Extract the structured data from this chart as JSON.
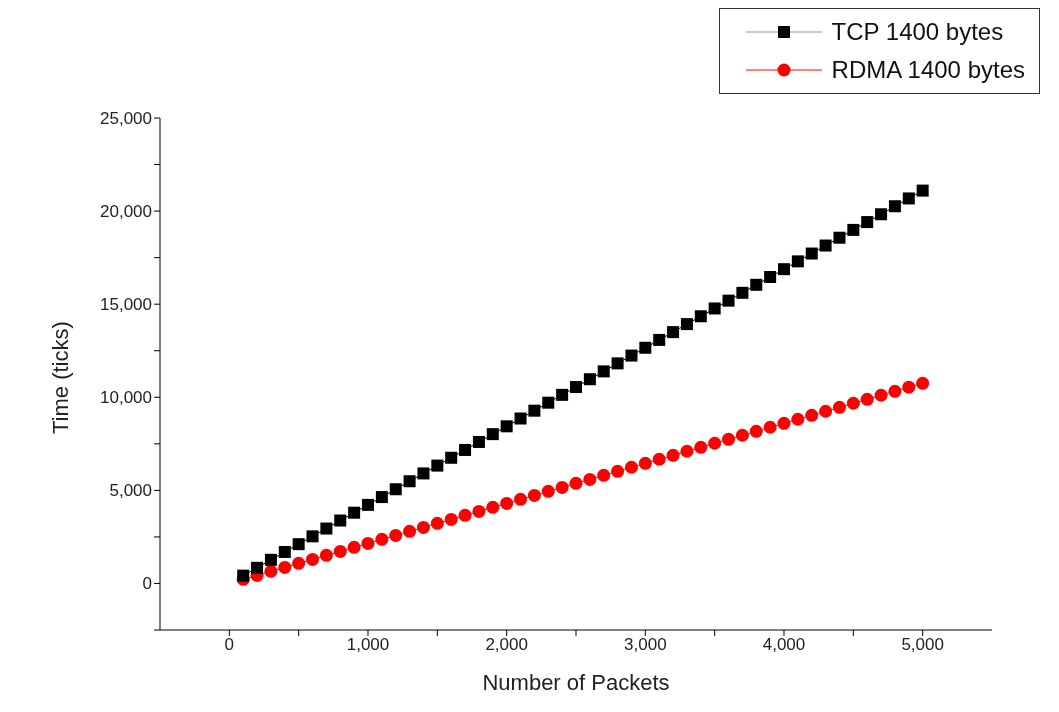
{
  "chart_data": {
    "type": "line",
    "xlabel": "Number of Packets",
    "ylabel": "Time (ticks)",
    "x": [
      100,
      200,
      300,
      400,
      500,
      600,
      700,
      800,
      900,
      1000,
      1100,
      1200,
      1300,
      1400,
      1500,
      1600,
      1700,
      1800,
      1900,
      2000,
      2100,
      2200,
      2300,
      2400,
      2500,
      2600,
      2700,
      2800,
      2900,
      3000,
      3100,
      3200,
      3300,
      3400,
      3500,
      3600,
      3700,
      3800,
      3900,
      4000,
      4100,
      4200,
      4300,
      4400,
      4500,
      4600,
      4700,
      4800,
      4900,
      5000
    ],
    "series": [
      {
        "name": "TCP 1400 bytes",
        "color": "#000000",
        "marker": "square",
        "values": [
          420,
          840,
          1270,
          1690,
          2110,
          2530,
          2950,
          3380,
          3800,
          4220,
          4640,
          5060,
          5490,
          5910,
          6330,
          6750,
          7170,
          7600,
          8020,
          8440,
          8860,
          9280,
          9710,
          10130,
          10550,
          10970,
          11390,
          11820,
          12240,
          12660,
          13080,
          13500,
          13930,
          14350,
          14770,
          15190,
          15610,
          16040,
          16460,
          16880,
          17300,
          17720,
          18150,
          18570,
          18990,
          19410,
          19830,
          20260,
          20680,
          21100
        ]
      },
      {
        "name": "RDMA 1400 bytes",
        "color": "#ff0000",
        "marker": "circle",
        "values": [
          220,
          430,
          650,
          860,
          1080,
          1290,
          1510,
          1720,
          1940,
          2150,
          2370,
          2580,
          2800,
          3010,
          3230,
          3440,
          3660,
          3870,
          4090,
          4300,
          4520,
          4730,
          4950,
          5160,
          5380,
          5590,
          5810,
          6020,
          6240,
          6450,
          6670,
          6880,
          7100,
          7310,
          7530,
          7740,
          7960,
          8170,
          8390,
          8600,
          8820,
          9030,
          9250,
          9460,
          9680,
          9890,
          10110,
          10320,
          10540,
          10750
        ]
      }
    ],
    "xlim": [
      -500,
      5500
    ],
    "xticks": [
      0,
      {
        "value": 500,
        "label": null
      },
      {
        "value": 1000,
        "label": "1,000"
      },
      {
        "value": 1500,
        "label": null
      },
      {
        "value": 2000,
        "label": "2,000"
      },
      {
        "value": 2500,
        "label": null
      },
      {
        "value": 3000,
        "label": "3,000"
      },
      {
        "value": 3500,
        "label": null
      },
      {
        "value": 4000,
        "label": "4,000"
      },
      {
        "value": 4500,
        "label": null
      },
      {
        "value": 5000,
        "label": "5,000"
      }
    ],
    "ylim": [
      -2500,
      25000
    ],
    "yticks": [
      {
        "value": -2500,
        "label": null
      },
      0,
      {
        "value": 2500,
        "label": null
      },
      {
        "value": 5000,
        "label": "5,000"
      },
      {
        "value": 7500,
        "label": null
      },
      {
        "value": 10000,
        "label": "10,000"
      },
      {
        "value": 12500,
        "label": null
      },
      {
        "value": 15000,
        "label": "15,000"
      },
      {
        "value": 17500,
        "label": null
      },
      {
        "value": 20000,
        "label": "20,000"
      },
      {
        "value": 22500,
        "label": null
      },
      {
        "value": 25000,
        "label": "25,000"
      }
    ],
    "grid": false,
    "legend": "top right",
    "line_style": "solid"
  }
}
